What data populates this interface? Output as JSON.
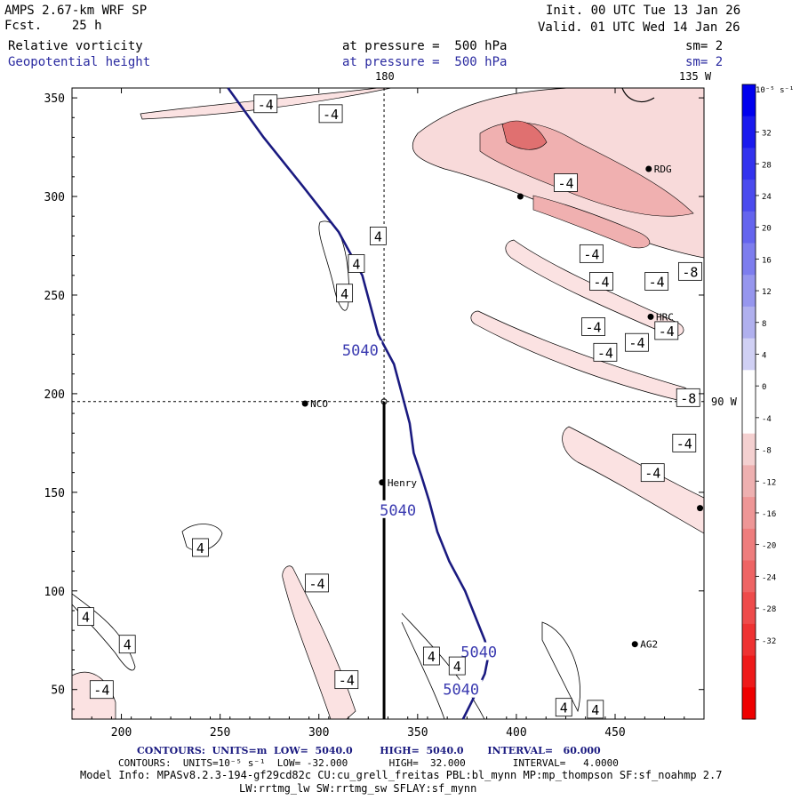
{
  "header": {
    "model_title": "AMPS 2.67-km WRF SP",
    "forecast": "Fcst.    25 h",
    "init": "Init. 00 UTC Tue 13 Jan 26",
    "valid": "Valid. 01 UTC Wed 14 Jan 26",
    "field1_name": "Relative vorticity",
    "field1_level": "at pressure =  500 hPa",
    "field1_sm": "sm= 2",
    "field2_name": "Geopotential height",
    "field2_level": "at pressure =  500 hPa",
    "field2_sm": "sm= 2"
  },
  "top_labels": {
    "lon180": "180",
    "lon135": "135 W",
    "lat90": "90 W"
  },
  "colorbar": {
    "unit_label": "10⁻⁵ s⁻¹",
    "ticks": [
      "32",
      "28",
      "24",
      "20",
      "16",
      "12",
      "8",
      "4",
      "0",
      "-4",
      "-8",
      "-12",
      "-16",
      "-20",
      "-24",
      "-28",
      "-32"
    ],
    "colors": [
      "#0000ee",
      "#1a1aee",
      "#3232ee",
      "#4b4bee",
      "#6464ee",
      "#7d7dee",
      "#9696ee",
      "#b0b0ee",
      "#d0d0f4",
      "#ffffff",
      "#ffffff",
      "#f4d0d0",
      "#eeb0b0",
      "#ee9696",
      "#ee7d7d",
      "#ee6464",
      "#ee4b4b",
      "#ee3232",
      "#ee1a1a",
      "#ee0000"
    ]
  },
  "stations": [
    {
      "name": "NCO",
      "x": 293,
      "y": 195
    },
    {
      "name": "Henry",
      "x": 332,
      "y": 155
    },
    {
      "name": "RDG",
      "x": 467,
      "y": 314
    },
    {
      "name": "HRC",
      "x": 468,
      "y": 239
    },
    {
      "name": "AG2",
      "x": 460,
      "y": 73
    },
    {
      "name": "",
      "x": 402,
      "y": 300
    },
    {
      "name": "",
      "x": 493,
      "y": 142
    }
  ],
  "chart_data": {
    "type": "contour",
    "title": "Relative vorticity and Geopotential height at 500 hPa",
    "xlabel": "",
    "ylabel": "",
    "xlim": [
      175,
      495
    ],
    "ylim": [
      35,
      355
    ],
    "x_ticks": [
      200,
      250,
      300,
      350,
      400,
      450
    ],
    "y_ticks": [
      50,
      100,
      150,
      200,
      250,
      300,
      350
    ],
    "guide_lines": {
      "vertical_x": 333,
      "horizontal_y": 196
    },
    "height_contour": {
      "value": "5040",
      "points": [
        [
          254,
          355
        ],
        [
          272,
          330
        ],
        [
          292,
          305
        ],
        [
          310,
          282
        ],
        [
          322,
          260
        ],
        [
          326,
          245
        ],
        [
          330,
          230
        ],
        [
          338,
          215
        ],
        [
          342,
          200
        ],
        [
          346,
          185
        ],
        [
          348,
          170
        ],
        [
          352,
          158
        ],
        [
          356,
          145
        ],
        [
          360,
          130
        ],
        [
          366,
          115
        ],
        [
          374,
          100
        ],
        [
          380,
          85
        ],
        [
          384,
          75
        ],
        [
          386,
          68
        ],
        [
          384,
          58
        ],
        [
          378,
          45
        ],
        [
          373,
          35
        ]
      ],
      "labels": [
        {
          "text": "5040",
          "x": 321,
          "y": 222
        },
        {
          "text": "5040",
          "x": 340,
          "y": 141
        },
        {
          "text": "5040",
          "x": 381,
          "y": 69
        },
        {
          "text": "5040",
          "x": 372,
          "y": 50
        }
      ]
    },
    "thick_segment": {
      "x": 333,
      "y_from": 35,
      "y_to": 196
    },
    "vorticity_labels": [
      {
        "text": "-4",
        "x": 273,
        "y": 347
      },
      {
        "text": "-4",
        "x": 306,
        "y": 342
      },
      {
        "text": "-4",
        "x": 425,
        "y": 307
      },
      {
        "text": "4",
        "x": 330,
        "y": 280
      },
      {
        "text": "4",
        "x": 319,
        "y": 266
      },
      {
        "text": "4",
        "x": 313,
        "y": 251
      },
      {
        "text": "-4",
        "x": 438,
        "y": 271
      },
      {
        "text": "-4",
        "x": 443,
        "y": 257
      },
      {
        "text": "-4",
        "x": 471,
        "y": 257
      },
      {
        "text": "-8",
        "x": 488,
        "y": 262
      },
      {
        "text": "-4",
        "x": 439,
        "y": 234
      },
      {
        "text": "-4",
        "x": 476,
        "y": 232
      },
      {
        "text": "-4",
        "x": 461,
        "y": 226
      },
      {
        "text": "-4",
        "x": 445,
        "y": 221
      },
      {
        "text": "-8",
        "x": 487,
        "y": 198
      },
      {
        "text": "-4",
        "x": 485,
        "y": 175
      },
      {
        "text": "-4",
        "x": 469,
        "y": 160
      },
      {
        "text": "4",
        "x": 240,
        "y": 122
      },
      {
        "text": "-4",
        "x": 299,
        "y": 104
      },
      {
        "text": "4",
        "x": 182,
        "y": 87
      },
      {
        "text": "4",
        "x": 203,
        "y": 73
      },
      {
        "text": "-4",
        "x": 190,
        "y": 50
      },
      {
        "text": "-4",
        "x": 314,
        "y": 55
      },
      {
        "text": "4",
        "x": 357,
        "y": 67
      },
      {
        "text": "4",
        "x": 370,
        "y": 62
      },
      {
        "text": "4",
        "x": 424,
        "y": 41
      },
      {
        "text": "4",
        "x": 440,
        "y": 40
      }
    ]
  },
  "footer": {
    "contours1": "CONTOURS:  UNITS=m  LOW=  5040.0        HIGH=  5040.0       INTERVAL=   60.000",
    "contours2": "CONTOURS:  UNITS=10⁻⁵ s⁻¹  LOW= -32.000       HIGH=  32.000        INTERVAL=   4.0000",
    "model_info": "Model Info: MPASv8.2.3-194-gf29cd82c CU:cu_grell_freitas PBL:bl_mynn MP:mp_thompson SF:sf_noahmp 2.7",
    "model_info2": "LW:rrtmg_lw SW:rrtmg_sw SFLAY:sf_mynn"
  }
}
